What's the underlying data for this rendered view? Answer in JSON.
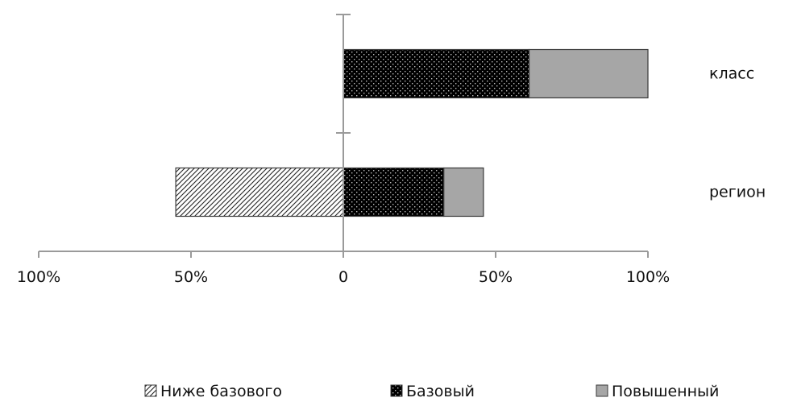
{
  "chart_data": {
    "type": "bar",
    "orientation": "horizontal",
    "stacked": true,
    "diverging": true,
    "categories": [
      "класс",
      "регион"
    ],
    "series": [
      {
        "name": "Ниже базового",
        "values": [
          0,
          55
        ],
        "side": "negative",
        "pattern": "diagonal-hatch",
        "color": "#ffffff"
      },
      {
        "name": "Базовый",
        "values": [
          61,
          33
        ],
        "side": "positive",
        "pattern": "dark-dots",
        "color": "#000000"
      },
      {
        "name": "Повышенный",
        "values": [
          39,
          13
        ],
        "side": "positive",
        "pattern": "solid",
        "color": "#a6a6a6"
      }
    ],
    "xlim": [
      -100,
      100
    ],
    "x_ticks": [
      {
        "value": -100,
        "label": "100%"
      },
      {
        "value": -50,
        "label": "50%"
      },
      {
        "value": 0,
        "label": "0"
      },
      {
        "value": 50,
        "label": "50%"
      },
      {
        "value": 100,
        "label": "100%"
      }
    ],
    "grid": false,
    "legend_position": "bottom"
  }
}
